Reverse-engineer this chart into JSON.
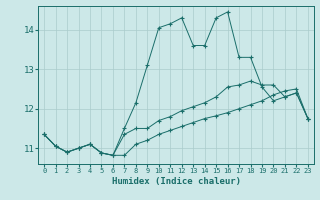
{
  "xlabel": "Humidex (Indice chaleur)",
  "bg_color": "#cce8e8",
  "grid_color": "#aacccc",
  "line_color": "#1a6e6a",
  "xlim": [
    -0.5,
    23.5
  ],
  "ylim": [
    10.6,
    14.6
  ],
  "yticks": [
    11,
    12,
    13,
    14
  ],
  "xticks": [
    0,
    1,
    2,
    3,
    4,
    5,
    6,
    7,
    8,
    9,
    10,
    11,
    12,
    13,
    14,
    15,
    16,
    17,
    18,
    19,
    20,
    21,
    22,
    23
  ],
  "line_bottom_x": [
    0,
    1,
    2,
    3,
    4,
    5,
    6,
    7,
    8,
    9,
    10,
    11,
    12,
    13,
    14,
    15,
    16,
    17,
    18,
    19,
    20,
    21,
    22,
    23
  ],
  "line_bottom_y": [
    11.35,
    11.05,
    10.9,
    11.0,
    11.1,
    10.88,
    10.82,
    10.82,
    11.1,
    11.2,
    11.35,
    11.45,
    11.55,
    11.65,
    11.75,
    11.82,
    11.9,
    12.0,
    12.1,
    12.2,
    12.35,
    12.45,
    12.5,
    11.75
  ],
  "line_mid_x": [
    0,
    1,
    2,
    3,
    4,
    5,
    6,
    7,
    8,
    9,
    10,
    11,
    12,
    13,
    14,
    15,
    16,
    17,
    18,
    19,
    20,
    21,
    22,
    23
  ],
  "line_mid_y": [
    11.35,
    11.05,
    10.9,
    11.0,
    11.1,
    10.88,
    10.82,
    11.35,
    11.5,
    11.5,
    11.7,
    11.8,
    11.95,
    12.05,
    12.15,
    12.3,
    12.55,
    12.6,
    12.7,
    12.6,
    12.6,
    12.3,
    12.4,
    11.75
  ],
  "line_top_x": [
    0,
    1,
    2,
    3,
    4,
    5,
    6,
    7,
    8,
    9,
    10,
    11,
    12,
    13,
    14,
    15,
    16,
    17,
    18,
    19,
    20,
    21,
    22,
    23
  ],
  "line_top_y": [
    11.35,
    11.05,
    10.9,
    11.0,
    11.1,
    10.88,
    10.82,
    11.5,
    12.15,
    13.1,
    14.05,
    14.15,
    14.3,
    13.6,
    13.6,
    14.3,
    14.45,
    13.3,
    13.3,
    12.55,
    12.2,
    12.3,
    12.4,
    11.75
  ]
}
